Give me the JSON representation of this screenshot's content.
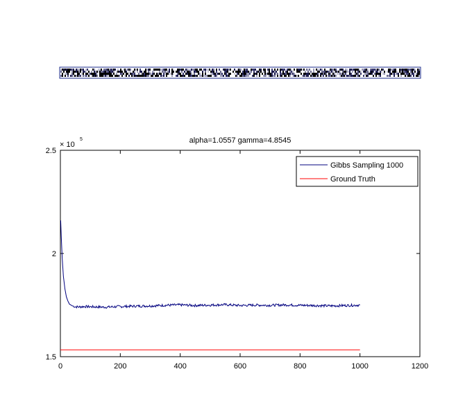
{
  "strip": {
    "colors": [
      "#000000",
      "#1b1b4d",
      "#3a3a6e",
      "#6b6b8f",
      "#9a9ab5",
      "#c8c8d8",
      "#ffffff"
    ],
    "frame_color": "#1a2a8a"
  },
  "chart_data": {
    "type": "line",
    "title": "alpha=1.0557  gamma=4.8545",
    "xlabel": "",
    "ylabel": "",
    "xlim": [
      0,
      1200
    ],
    "ylim": [
      150000,
      250000
    ],
    "y_exponent_label": "× 10",
    "y_exponent": "5",
    "x_ticks": [
      0,
      200,
      400,
      600,
      800,
      1000,
      1200
    ],
    "x_tick_labels": [
      "0",
      "200",
      "400",
      "600",
      "800",
      "1000",
      "1200"
    ],
    "y_ticks": [
      150000,
      200000,
      250000
    ],
    "y_tick_labels": [
      "1.5",
      "2",
      "2.5"
    ],
    "legend_position": "top-right",
    "grid": false,
    "series": [
      {
        "name": "Gibbs Sampling 1000",
        "color": "#00007f",
        "x": [
          1,
          3,
          6,
          10,
          15,
          20,
          25,
          30,
          40,
          50,
          60,
          80,
          100,
          150,
          200,
          250,
          300,
          350,
          400,
          450,
          500,
          550,
          600,
          650,
          700,
          750,
          800,
          850,
          900,
          950,
          1000
        ],
        "y": [
          216000,
          208000,
          198000,
          189000,
          183000,
          179000,
          177000,
          175500,
          174600,
          174200,
          174100,
          174300,
          174200,
          174000,
          174300,
          174500,
          174600,
          174900,
          175100,
          174800,
          175000,
          175200,
          174800,
          175000,
          174900,
          175100,
          174900,
          174800,
          174600,
          174800,
          175000
        ]
      },
      {
        "name": "Ground Truth",
        "color": "#ff0000",
        "x": [
          0,
          1000
        ],
        "y": [
          153300,
          153300
        ]
      }
    ]
  }
}
